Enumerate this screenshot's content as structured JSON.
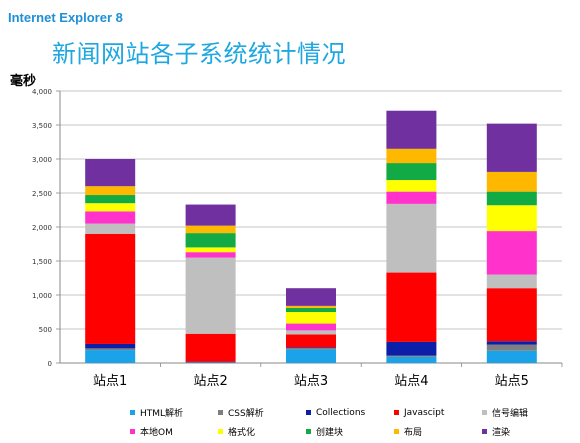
{
  "brand": "Internet Explorer 8",
  "title": "新闻网站各子系统统计情况",
  "chart_data": {
    "type": "bar",
    "stacked": true,
    "ylabel": "毫秒",
    "ylim": [
      0,
      4000
    ],
    "yticks": [
      "0",
      "500",
      "1,000",
      "1,500",
      "2,000",
      "2,500",
      "3,000",
      "3,500",
      "4,000"
    ],
    "ytick_values": [
      0,
      500,
      1000,
      1500,
      2000,
      2500,
      3000,
      3500,
      4000
    ],
    "grid": true,
    "legend_position": "bottom",
    "categories": [
      "站点1",
      "站点2",
      "站点3",
      "站点4",
      "站点5"
    ],
    "series": [
      {
        "name": "HTML解析",
        "color": "#1aa3e8",
        "values": [
          190,
          0,
          200,
          90,
          180
        ]
      },
      {
        "name": "CSS解析",
        "color": "#7f7f7f",
        "values": [
          25,
          10,
          20,
          20,
          90
        ]
      },
      {
        "name": "Collections",
        "color": "#0b1fa8",
        "values": [
          65,
          10,
          10,
          200,
          50
        ]
      },
      {
        "name": "Javascipt",
        "color": "#ff0000",
        "values": [
          1620,
          410,
          190,
          1020,
          780
        ]
      },
      {
        "name": "信号编辑",
        "color": "#bfbfbf",
        "values": [
          150,
          1120,
          60,
          1010,
          200
        ]
      },
      {
        "name": "本地OM",
        "color": "#ff33cc",
        "values": [
          180,
          80,
          100,
          180,
          640
        ]
      },
      {
        "name": "格式化",
        "color": "#ffff00",
        "values": [
          120,
          70,
          170,
          170,
          380
        ]
      },
      {
        "name": "创建块",
        "color": "#11aa44",
        "values": [
          120,
          210,
          60,
          250,
          200
        ]
      },
      {
        "name": "布局",
        "color": "#ffb800",
        "values": [
          130,
          110,
          30,
          210,
          290
        ]
      },
      {
        "name": "渲染",
        "color": "#7030a0",
        "values": [
          400,
          310,
          260,
          560,
          710
        ]
      }
    ]
  }
}
